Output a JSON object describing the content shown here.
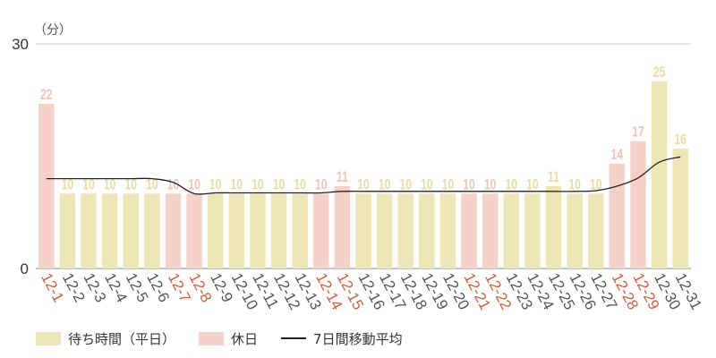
{
  "chart_data": {
    "type": "bar",
    "unit_label": "（分）",
    "ylim": [
      0,
      30
    ],
    "yticks": [
      0,
      30
    ],
    "categories": [
      "12-1",
      "12-2",
      "12-3",
      "12-4",
      "12-5",
      "12-6",
      "12-7",
      "12-8",
      "12-9",
      "12-10",
      "12-11",
      "12-12",
      "12-13",
      "12-14",
      "12-15",
      "12-16",
      "12-17",
      "12-18",
      "12-19",
      "12-20",
      "12-21",
      "12-22",
      "12-23",
      "12-24",
      "12-25",
      "12-26",
      "12-27",
      "12-28",
      "12-29",
      "12-30",
      "12-31"
    ],
    "holiday": [
      true,
      false,
      false,
      false,
      false,
      false,
      true,
      true,
      false,
      false,
      false,
      false,
      false,
      true,
      true,
      false,
      false,
      false,
      false,
      false,
      true,
      true,
      false,
      false,
      false,
      false,
      false,
      true,
      true,
      false,
      false
    ],
    "values": [
      22,
      10,
      10,
      10,
      10,
      10,
      10,
      10,
      10,
      10,
      10,
      10,
      10,
      10,
      11,
      10,
      10,
      10,
      10,
      10,
      10,
      10,
      10,
      10,
      11,
      10,
      10,
      14,
      17,
      25,
      16
    ],
    "moving_average": {
      "name": "7日間移動平均",
      "start_index": 0,
      "values": [
        12,
        12,
        12,
        12,
        12,
        12,
        11.5,
        10,
        10.1,
        10.1,
        10.1,
        10.1,
        10.1,
        10.1,
        10.3,
        10.3,
        10.3,
        10.3,
        10.3,
        10.3,
        10.3,
        10.3,
        10.3,
        10.3,
        10.3,
        10.3,
        10.4,
        11,
        12.1,
        14.2,
        14.9
      ]
    },
    "legend": [
      {
        "key": "weekday",
        "label": "待ち時間（平日）"
      },
      {
        "key": "holiday",
        "label": "休日"
      },
      {
        "key": "ma",
        "label": "7日間移動平均"
      }
    ],
    "colors": {
      "weekday_bar": "#efe6b5",
      "holiday_bar": "#f5d1c8",
      "weekday_label": "#eadca0",
      "holiday_label": "#edc4b8",
      "holiday_tick": "#c9613f",
      "weekday_tick": "#555555",
      "ma_line": "#222222",
      "grid": "#cccccc",
      "axis": "#888888"
    }
  }
}
